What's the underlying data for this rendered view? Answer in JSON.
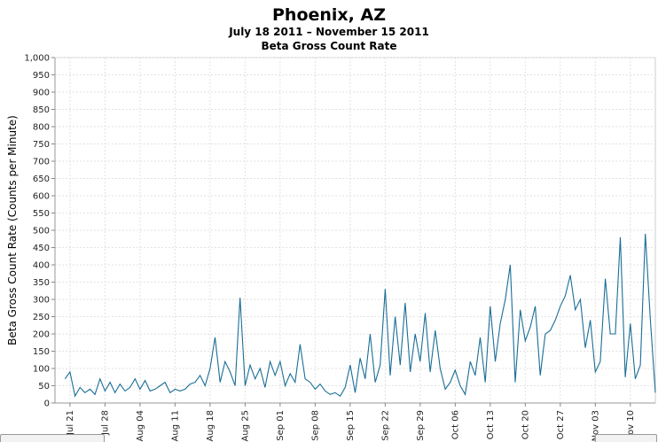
{
  "chart_data": {
    "type": "line",
    "title": "Phoenix, AZ",
    "subtitle": "July 18 2011 – November 15 2011",
    "subtitle2": "Beta Gross Count Rate",
    "ylabel": "Beta Gross Count Rate (Counts per Minute)",
    "xlabel": "",
    "ylim": [
      0,
      1000
    ],
    "xlim": [
      "2011-07-18",
      "2011-11-15"
    ],
    "yticks": [
      "0",
      "50",
      "100",
      "150",
      "200",
      "250",
      "300",
      "350",
      "400",
      "450",
      "500",
      "550",
      "600",
      "650",
      "700",
      "750",
      "800",
      "850",
      "900",
      "950",
      "1,000"
    ],
    "xticks": [
      {
        "date": "2011-07-21",
        "label": "Jul 21"
      },
      {
        "date": "2011-07-28",
        "label": "Jul 28"
      },
      {
        "date": "2011-08-04",
        "label": "Aug 04"
      },
      {
        "date": "2011-08-11",
        "label": "Aug 11"
      },
      {
        "date": "2011-08-18",
        "label": "Aug 18"
      },
      {
        "date": "2011-08-25",
        "label": "Aug 25"
      },
      {
        "date": "2011-09-01",
        "label": "Sep 01"
      },
      {
        "date": "2011-09-08",
        "label": "Sep 08"
      },
      {
        "date": "2011-09-15",
        "label": "Sep 15"
      },
      {
        "date": "2011-09-22",
        "label": "Sep 22"
      },
      {
        "date": "2011-09-29",
        "label": "Sep 29"
      },
      {
        "date": "2011-10-06",
        "label": "Oct 06"
      },
      {
        "date": "2011-10-13",
        "label": "Oct 13"
      },
      {
        "date": "2011-10-20",
        "label": "Oct 20"
      },
      {
        "date": "2011-10-27",
        "label": "Oct 27"
      },
      {
        "date": "2011-11-03",
        "label": "Nov 03"
      },
      {
        "date": "2011-11-10",
        "label": "Nov 10"
      }
    ],
    "grid": true,
    "line_color": "#1a6e96",
    "series": [
      {
        "x": [
          "2011-07-20",
          "2011-07-21",
          "2011-07-22",
          "2011-07-23",
          "2011-07-24",
          "2011-07-25",
          "2011-07-26",
          "2011-07-27",
          "2011-07-28",
          "2011-07-29",
          "2011-07-30",
          "2011-07-31",
          "2011-08-01",
          "2011-08-02",
          "2011-08-03",
          "2011-08-04",
          "2011-08-05",
          "2011-08-06",
          "2011-08-07",
          "2011-08-08",
          "2011-08-09",
          "2011-08-10",
          "2011-08-11",
          "2011-08-12",
          "2011-08-13",
          "2011-08-14",
          "2011-08-15",
          "2011-08-16",
          "2011-08-17",
          "2011-08-18",
          "2011-08-19",
          "2011-08-20",
          "2011-08-21",
          "2011-08-22",
          "2011-08-23",
          "2011-08-24",
          "2011-08-25",
          "2011-08-26",
          "2011-08-27",
          "2011-08-28",
          "2011-08-29",
          "2011-08-30",
          "2011-08-31",
          "2011-09-01",
          "2011-09-02",
          "2011-09-03",
          "2011-09-04",
          "2011-09-05",
          "2011-09-06",
          "2011-09-07",
          "2011-09-08",
          "2011-09-09",
          "2011-09-10",
          "2011-09-11",
          "2011-09-12",
          "2011-09-13",
          "2011-09-14",
          "2011-09-15",
          "2011-09-16",
          "2011-09-17",
          "2011-09-18",
          "2011-09-19",
          "2011-09-20",
          "2011-09-21",
          "2011-09-22",
          "2011-09-23",
          "2011-09-24",
          "2011-09-25",
          "2011-09-26",
          "2011-09-27",
          "2011-09-28",
          "2011-09-29",
          "2011-09-30",
          "2011-10-01",
          "2011-10-02",
          "2011-10-03",
          "2011-10-04",
          "2011-10-05",
          "2011-10-06",
          "2011-10-07",
          "2011-10-08",
          "2011-10-09",
          "2011-10-10",
          "2011-10-11",
          "2011-10-12",
          "2011-10-13",
          "2011-10-14",
          "2011-10-15",
          "2011-10-16",
          "2011-10-17",
          "2011-10-18",
          "2011-10-19",
          "2011-10-20",
          "2011-10-21",
          "2011-10-22",
          "2011-10-23",
          "2011-10-24",
          "2011-10-25",
          "2011-10-26",
          "2011-10-27",
          "2011-10-28",
          "2011-10-29",
          "2011-10-30",
          "2011-10-31",
          "2011-11-01",
          "2011-11-02",
          "2011-11-03",
          "2011-11-04",
          "2011-11-05",
          "2011-11-06",
          "2011-11-07",
          "2011-11-08",
          "2011-11-09",
          "2011-11-10",
          "2011-11-11",
          "2011-11-12",
          "2011-11-13",
          "2011-11-14",
          "2011-11-15"
        ],
        "values": [
          70,
          90,
          20,
          45,
          30,
          40,
          25,
          70,
          35,
          60,
          30,
          55,
          35,
          45,
          70,
          40,
          65,
          35,
          40,
          50,
          60,
          30,
          40,
          35,
          40,
          55,
          60,
          80,
          50,
          100,
          190,
          60,
          120,
          90,
          50,
          305,
          50,
          110,
          70,
          100,
          45,
          120,
          80,
          120,
          50,
          85,
          60,
          170,
          70,
          60,
          40,
          55,
          35,
          25,
          30,
          20,
          45,
          110,
          30,
          130,
          70,
          200,
          60,
          110,
          330,
          80,
          250,
          110,
          290,
          90,
          200,
          120,
          260,
          90,
          210,
          100,
          40,
          60,
          95,
          50,
          25,
          120,
          80,
          190,
          60,
          280,
          120,
          230,
          300,
          400,
          60,
          270,
          180,
          220,
          280,
          80,
          200,
          210,
          240,
          280,
          310,
          370,
          270,
          300,
          160,
          240,
          90,
          120,
          360,
          200,
          200,
          480,
          75,
          230,
          70,
          110,
          490,
          240,
          30
        ]
      }
    ]
  }
}
